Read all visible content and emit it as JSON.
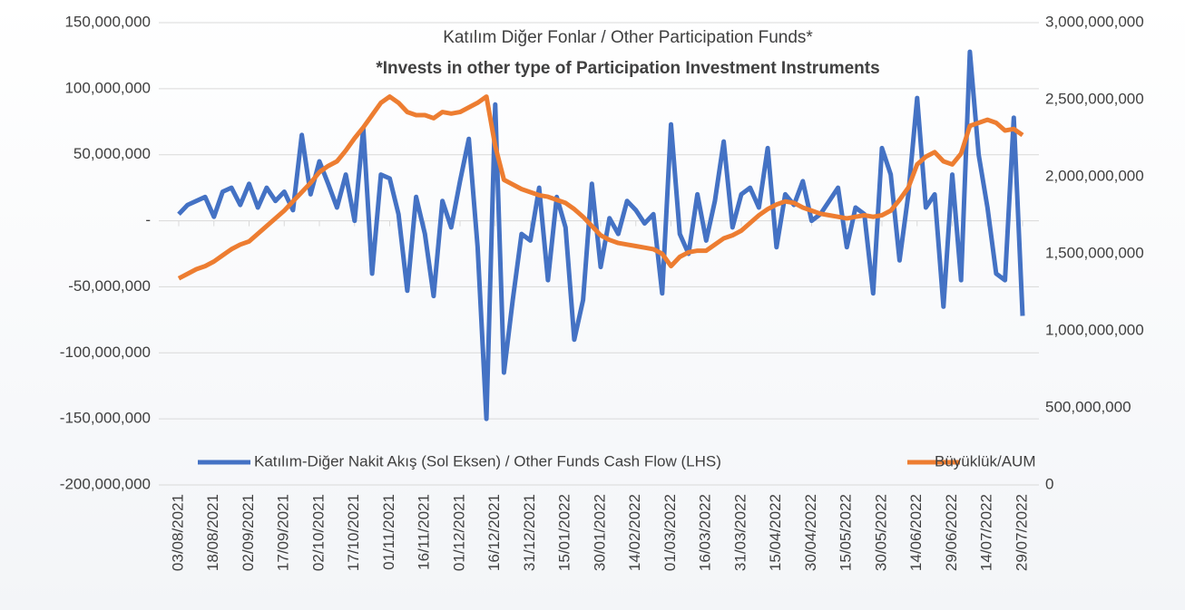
{
  "chart_data": {
    "type": "line",
    "title": "Katılım Diğer Fonlar / Other Participation Funds*",
    "subtitle": "*Invests in other type of Participation Investment Instruments",
    "categories": [
      "03/08/2021",
      null,
      null,
      null,
      "18/08/2021",
      null,
      null,
      null,
      "02/09/2021",
      null,
      null,
      null,
      "17/09/2021",
      null,
      null,
      null,
      "02/10/2021",
      null,
      null,
      null,
      "17/10/2021",
      null,
      null,
      null,
      "01/11/2021",
      null,
      null,
      null,
      "16/11/2021",
      null,
      null,
      null,
      "01/12/2021",
      null,
      null,
      null,
      "16/12/2021",
      null,
      null,
      null,
      "31/12/2021",
      null,
      null,
      null,
      "15/01/2022",
      null,
      null,
      null,
      "30/01/2022",
      null,
      null,
      null,
      "14/02/2022",
      null,
      null,
      null,
      "01/03/2022",
      null,
      null,
      null,
      "16/03/2022",
      null,
      null,
      null,
      "31/03/2022",
      null,
      null,
      null,
      "15/04/2022",
      null,
      null,
      null,
      "30/04/2022",
      null,
      null,
      null,
      "15/05/2022",
      null,
      null,
      null,
      "30/05/2022",
      null,
      null,
      null,
      "14/06/2022",
      null,
      null,
      null,
      "29/06/2022",
      null,
      null,
      null,
      "14/07/2022",
      null,
      null,
      null,
      "29/07/2022"
    ],
    "series": [
      {
        "name": "Katılım-Diğer Nakit Akış (Sol Eksen) / Other Funds Cash Flow (LHS)",
        "color": "#4472c4",
        "axis": "y",
        "values": [
          5000000,
          12000000,
          15000000,
          18000000,
          3000000,
          22000000,
          25000000,
          12000000,
          28000000,
          10000000,
          25000000,
          15000000,
          22000000,
          8000000,
          65000000,
          20000000,
          45000000,
          28000000,
          10000000,
          35000000,
          0,
          70000000,
          -40000000,
          35000000,
          32000000,
          5000000,
          -53000000,
          18000000,
          -10000000,
          -57000000,
          15000000,
          -5000000,
          30000000,
          62000000,
          -20000000,
          -150000000,
          88000000,
          -115000000,
          -60000000,
          -10000000,
          -15000000,
          25000000,
          -45000000,
          18000000,
          -5000000,
          -90000000,
          -60000000,
          28000000,
          -35000000,
          2000000,
          -10000000,
          15000000,
          8000000,
          -2000000,
          5000000,
          -55000000,
          73000000,
          -10000000,
          -25000000,
          20000000,
          -15000000,
          15000000,
          60000000,
          -5000000,
          20000000,
          25000000,
          10000000,
          55000000,
          -20000000,
          20000000,
          12000000,
          30000000,
          0,
          5000000,
          15000000,
          25000000,
          -20000000,
          10000000,
          5000000,
          -55000000,
          55000000,
          35000000,
          -30000000,
          20000000,
          93000000,
          10000000,
          20000000,
          -65000000,
          35000000,
          -45000000,
          128000000,
          50000000,
          10000000,
          -40000000,
          -45000000,
          78000000,
          -72000000
        ]
      },
      {
        "name": "Büyüklük/AUM",
        "color": "#ed7d31",
        "axis": "y2",
        "values": [
          1340000000,
          1370000000,
          1400000000,
          1420000000,
          1450000000,
          1490000000,
          1530000000,
          1560000000,
          1580000000,
          1630000000,
          1680000000,
          1730000000,
          1780000000,
          1840000000,
          1900000000,
          1960000000,
          2030000000,
          2070000000,
          2100000000,
          2170000000,
          2250000000,
          2320000000,
          2400000000,
          2480000000,
          2520000000,
          2480000000,
          2420000000,
          2400000000,
          2400000000,
          2380000000,
          2420000000,
          2410000000,
          2420000000,
          2450000000,
          2480000000,
          2520000000,
          2200000000,
          1980000000,
          1950000000,
          1920000000,
          1900000000,
          1880000000,
          1870000000,
          1850000000,
          1830000000,
          1790000000,
          1740000000,
          1680000000,
          1620000000,
          1590000000,
          1570000000,
          1560000000,
          1550000000,
          1540000000,
          1530000000,
          1500000000,
          1420000000,
          1480000000,
          1510000000,
          1520000000,
          1520000000,
          1560000000,
          1600000000,
          1620000000,
          1650000000,
          1700000000,
          1750000000,
          1790000000,
          1820000000,
          1840000000,
          1830000000,
          1800000000,
          1780000000,
          1760000000,
          1750000000,
          1740000000,
          1730000000,
          1740000000,
          1750000000,
          1740000000,
          1750000000,
          1780000000,
          1850000000,
          1930000000,
          2080000000,
          2130000000,
          2160000000,
          2100000000,
          2080000000,
          2150000000,
          2330000000,
          2350000000,
          2370000000,
          2350000000,
          2300000000,
          2310000000,
          2270000000
        ]
      }
    ],
    "ylim": [
      -200000000,
      150000000
    ],
    "yticks": [
      {
        "value": -200000000,
        "label": "-200,000,000"
      },
      {
        "value": -150000000,
        "label": "-150,000,000"
      },
      {
        "value": -100000000,
        "label": "-100,000,000"
      },
      {
        "value": -50000000,
        "label": "-50,000,000"
      },
      {
        "value": 0,
        "label": "-"
      },
      {
        "value": 50000000,
        "label": "50,000,000"
      },
      {
        "value": 100000000,
        "label": "100,000,000"
      },
      {
        "value": 150000000,
        "label": "150,000,000"
      }
    ],
    "y2lim": [
      0,
      3000000000
    ],
    "y2ticks": [
      0,
      {
        "value": 500000000,
        "label": "500,000,000"
      },
      {
        "value": 1000000000,
        "label": "1,000,000,000"
      },
      {
        "value": 1500000000,
        "label": "1,500,000,000"
      },
      {
        "value": 2000000000,
        "label": "2,000,000,000"
      },
      {
        "value": 2500000000,
        "label": "2,500,000,000"
      },
      {
        "value": 3000000000,
        "label": "3,000,000,000"
      }
    ],
    "grid": true,
    "legend": "bottom"
  }
}
